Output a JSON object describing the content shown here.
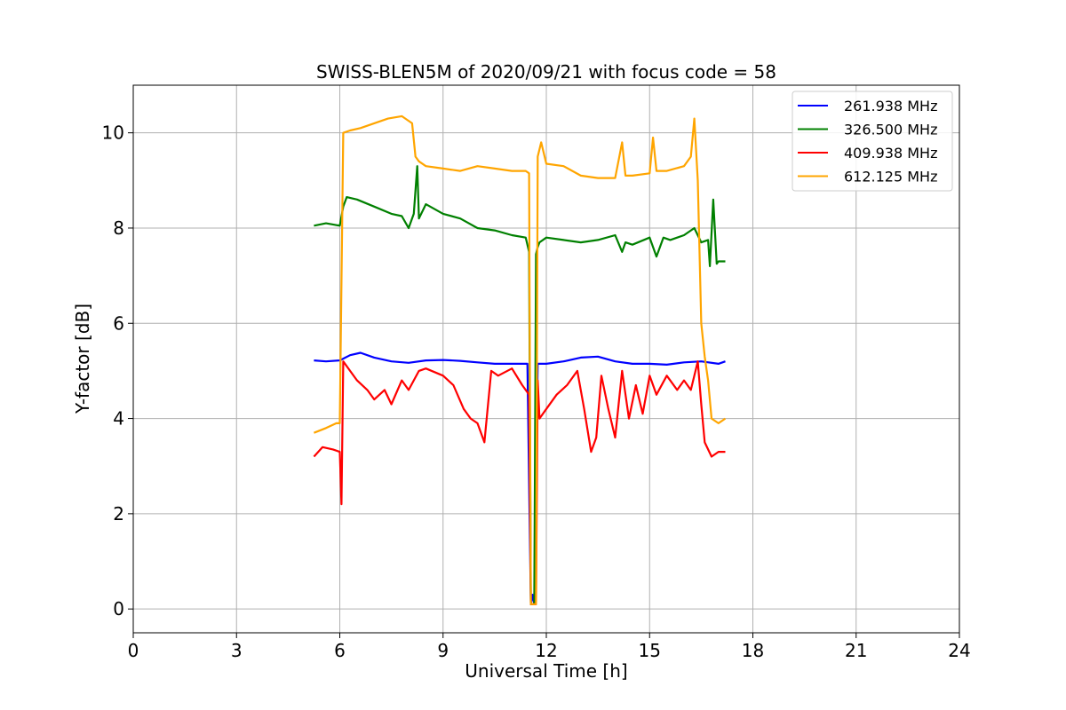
{
  "chart_data": {
    "type": "line",
    "title": "SWISS-BLEN5M of 2020/09/21 with focus code = 58",
    "xlabel": "Universal Time [h]",
    "ylabel": "Y-factor [dB]",
    "xlim": [
      0,
      24
    ],
    "ylim": [
      -0.5,
      11
    ],
    "xticks": [
      "0",
      "3",
      "6",
      "9",
      "12",
      "15",
      "18",
      "21",
      "24"
    ],
    "yticks": [
      "0",
      "2",
      "4",
      "6",
      "8",
      "10"
    ],
    "grid": true,
    "legend_position": "top-right",
    "series": [
      {
        "name": "261.938 MHz",
        "color": "#0000ff",
        "x": [
          5.25,
          5.6,
          6.0,
          6.3,
          6.6,
          7.0,
          7.5,
          8.0,
          8.5,
          9.0,
          9.5,
          10.0,
          10.5,
          11.0,
          11.45,
          11.55,
          11.6,
          11.65,
          11.75,
          12.0,
          12.5,
          13.0,
          13.5,
          14.0,
          14.5,
          15.0,
          15.5,
          16.0,
          16.5,
          17.0,
          17.2
        ],
        "y": [
          5.22,
          5.2,
          5.22,
          5.33,
          5.38,
          5.28,
          5.2,
          5.17,
          5.22,
          5.23,
          5.21,
          5.18,
          5.15,
          5.15,
          5.15,
          0.1,
          0.3,
          0.1,
          5.15,
          5.15,
          5.2,
          5.28,
          5.3,
          5.2,
          5.15,
          5.15,
          5.13,
          5.18,
          5.2,
          5.15,
          5.2
        ]
      },
      {
        "name": "326.500 MHz",
        "color": "#008000",
        "x": [
          5.25,
          5.6,
          6.0,
          6.1,
          6.2,
          6.5,
          7.0,
          7.5,
          7.8,
          8.0,
          8.15,
          8.25,
          8.3,
          8.5,
          9.0,
          9.5,
          10.0,
          10.5,
          11.0,
          11.4,
          11.5,
          11.55,
          11.6,
          11.65,
          11.7,
          11.75,
          11.8,
          12.0,
          12.5,
          13.0,
          13.5,
          14.0,
          14.2,
          14.3,
          14.5,
          15.0,
          15.2,
          15.4,
          15.6,
          16.0,
          16.3,
          16.5,
          16.7,
          16.75,
          16.85,
          16.95,
          17.0,
          17.2
        ],
        "y": [
          8.05,
          8.1,
          8.05,
          8.45,
          8.65,
          8.6,
          8.45,
          8.3,
          8.25,
          8.0,
          8.3,
          9.3,
          8.2,
          8.5,
          8.3,
          8.2,
          8.0,
          7.95,
          7.85,
          7.8,
          7.5,
          0.1,
          0.1,
          0.1,
          7.45,
          7.6,
          7.7,
          7.8,
          7.75,
          7.7,
          7.75,
          7.85,
          7.5,
          7.7,
          7.65,
          7.8,
          7.4,
          7.8,
          7.75,
          7.85,
          8.0,
          7.7,
          7.75,
          7.2,
          8.6,
          7.25,
          7.3,
          7.3
        ]
      },
      {
        "name": "409.938 MHz",
        "color": "#ff0000",
        "x": [
          5.25,
          5.5,
          5.8,
          6.0,
          6.05,
          6.1,
          6.3,
          6.5,
          6.8,
          7.0,
          7.3,
          7.5,
          7.8,
          8.0,
          8.3,
          8.5,
          9.0,
          9.3,
          9.6,
          9.8,
          10.0,
          10.2,
          10.4,
          10.6,
          11.0,
          11.3,
          11.5,
          11.55,
          11.6,
          11.65,
          11.7,
          11.75,
          11.8,
          12.0,
          12.3,
          12.6,
          12.9,
          13.1,
          13.3,
          13.45,
          13.6,
          13.8,
          14.0,
          14.2,
          14.4,
          14.6,
          14.8,
          15.0,
          15.2,
          15.5,
          15.8,
          16.0,
          16.2,
          16.4,
          16.5,
          16.6,
          16.8,
          17.0,
          17.2
        ],
        "y": [
          3.2,
          3.4,
          3.35,
          3.3,
          2.2,
          5.2,
          5.0,
          4.8,
          4.6,
          4.4,
          4.6,
          4.3,
          4.8,
          4.6,
          5.0,
          5.05,
          4.9,
          4.7,
          4.2,
          4.0,
          3.9,
          3.5,
          5.0,
          4.9,
          5.05,
          4.7,
          4.5,
          0.1,
          0.1,
          0.1,
          0.1,
          4.8,
          4.0,
          4.2,
          4.5,
          4.7,
          5.0,
          4.2,
          3.3,
          3.6,
          4.9,
          4.2,
          3.6,
          5.0,
          4.0,
          4.7,
          4.1,
          4.9,
          4.5,
          4.9,
          4.6,
          4.8,
          4.6,
          5.2,
          4.3,
          3.5,
          3.2,
          3.3,
          3.3
        ]
      },
      {
        "name": "612.125 MHz",
        "color": "#ffa500",
        "x": [
          5.25,
          5.6,
          5.9,
          6.0,
          6.1,
          6.3,
          6.6,
          7.0,
          7.4,
          7.8,
          8.1,
          8.2,
          8.3,
          8.5,
          9.0,
          9.5,
          10.0,
          10.5,
          11.0,
          11.4,
          11.5,
          11.55,
          11.6,
          11.65,
          11.7,
          11.75,
          11.85,
          12.0,
          12.5,
          13.0,
          13.5,
          14.0,
          14.2,
          14.3,
          14.5,
          15.0,
          15.1,
          15.2,
          15.5,
          16.0,
          16.2,
          16.3,
          16.4,
          16.5,
          16.6,
          16.7,
          16.8,
          17.0,
          17.2
        ],
        "y": [
          3.7,
          3.8,
          3.9,
          3.9,
          10.0,
          10.05,
          10.1,
          10.2,
          10.3,
          10.35,
          10.2,
          9.5,
          9.4,
          9.3,
          9.25,
          9.2,
          9.3,
          9.25,
          9.2,
          9.2,
          9.15,
          0.1,
          0.1,
          0.1,
          0.1,
          9.5,
          9.8,
          9.35,
          9.3,
          9.1,
          9.05,
          9.05,
          9.8,
          9.1,
          9.1,
          9.15,
          9.9,
          9.2,
          9.2,
          9.3,
          9.5,
          10.3,
          9.0,
          6.0,
          5.3,
          4.8,
          4.0,
          3.9,
          4.0
        ]
      }
    ]
  }
}
